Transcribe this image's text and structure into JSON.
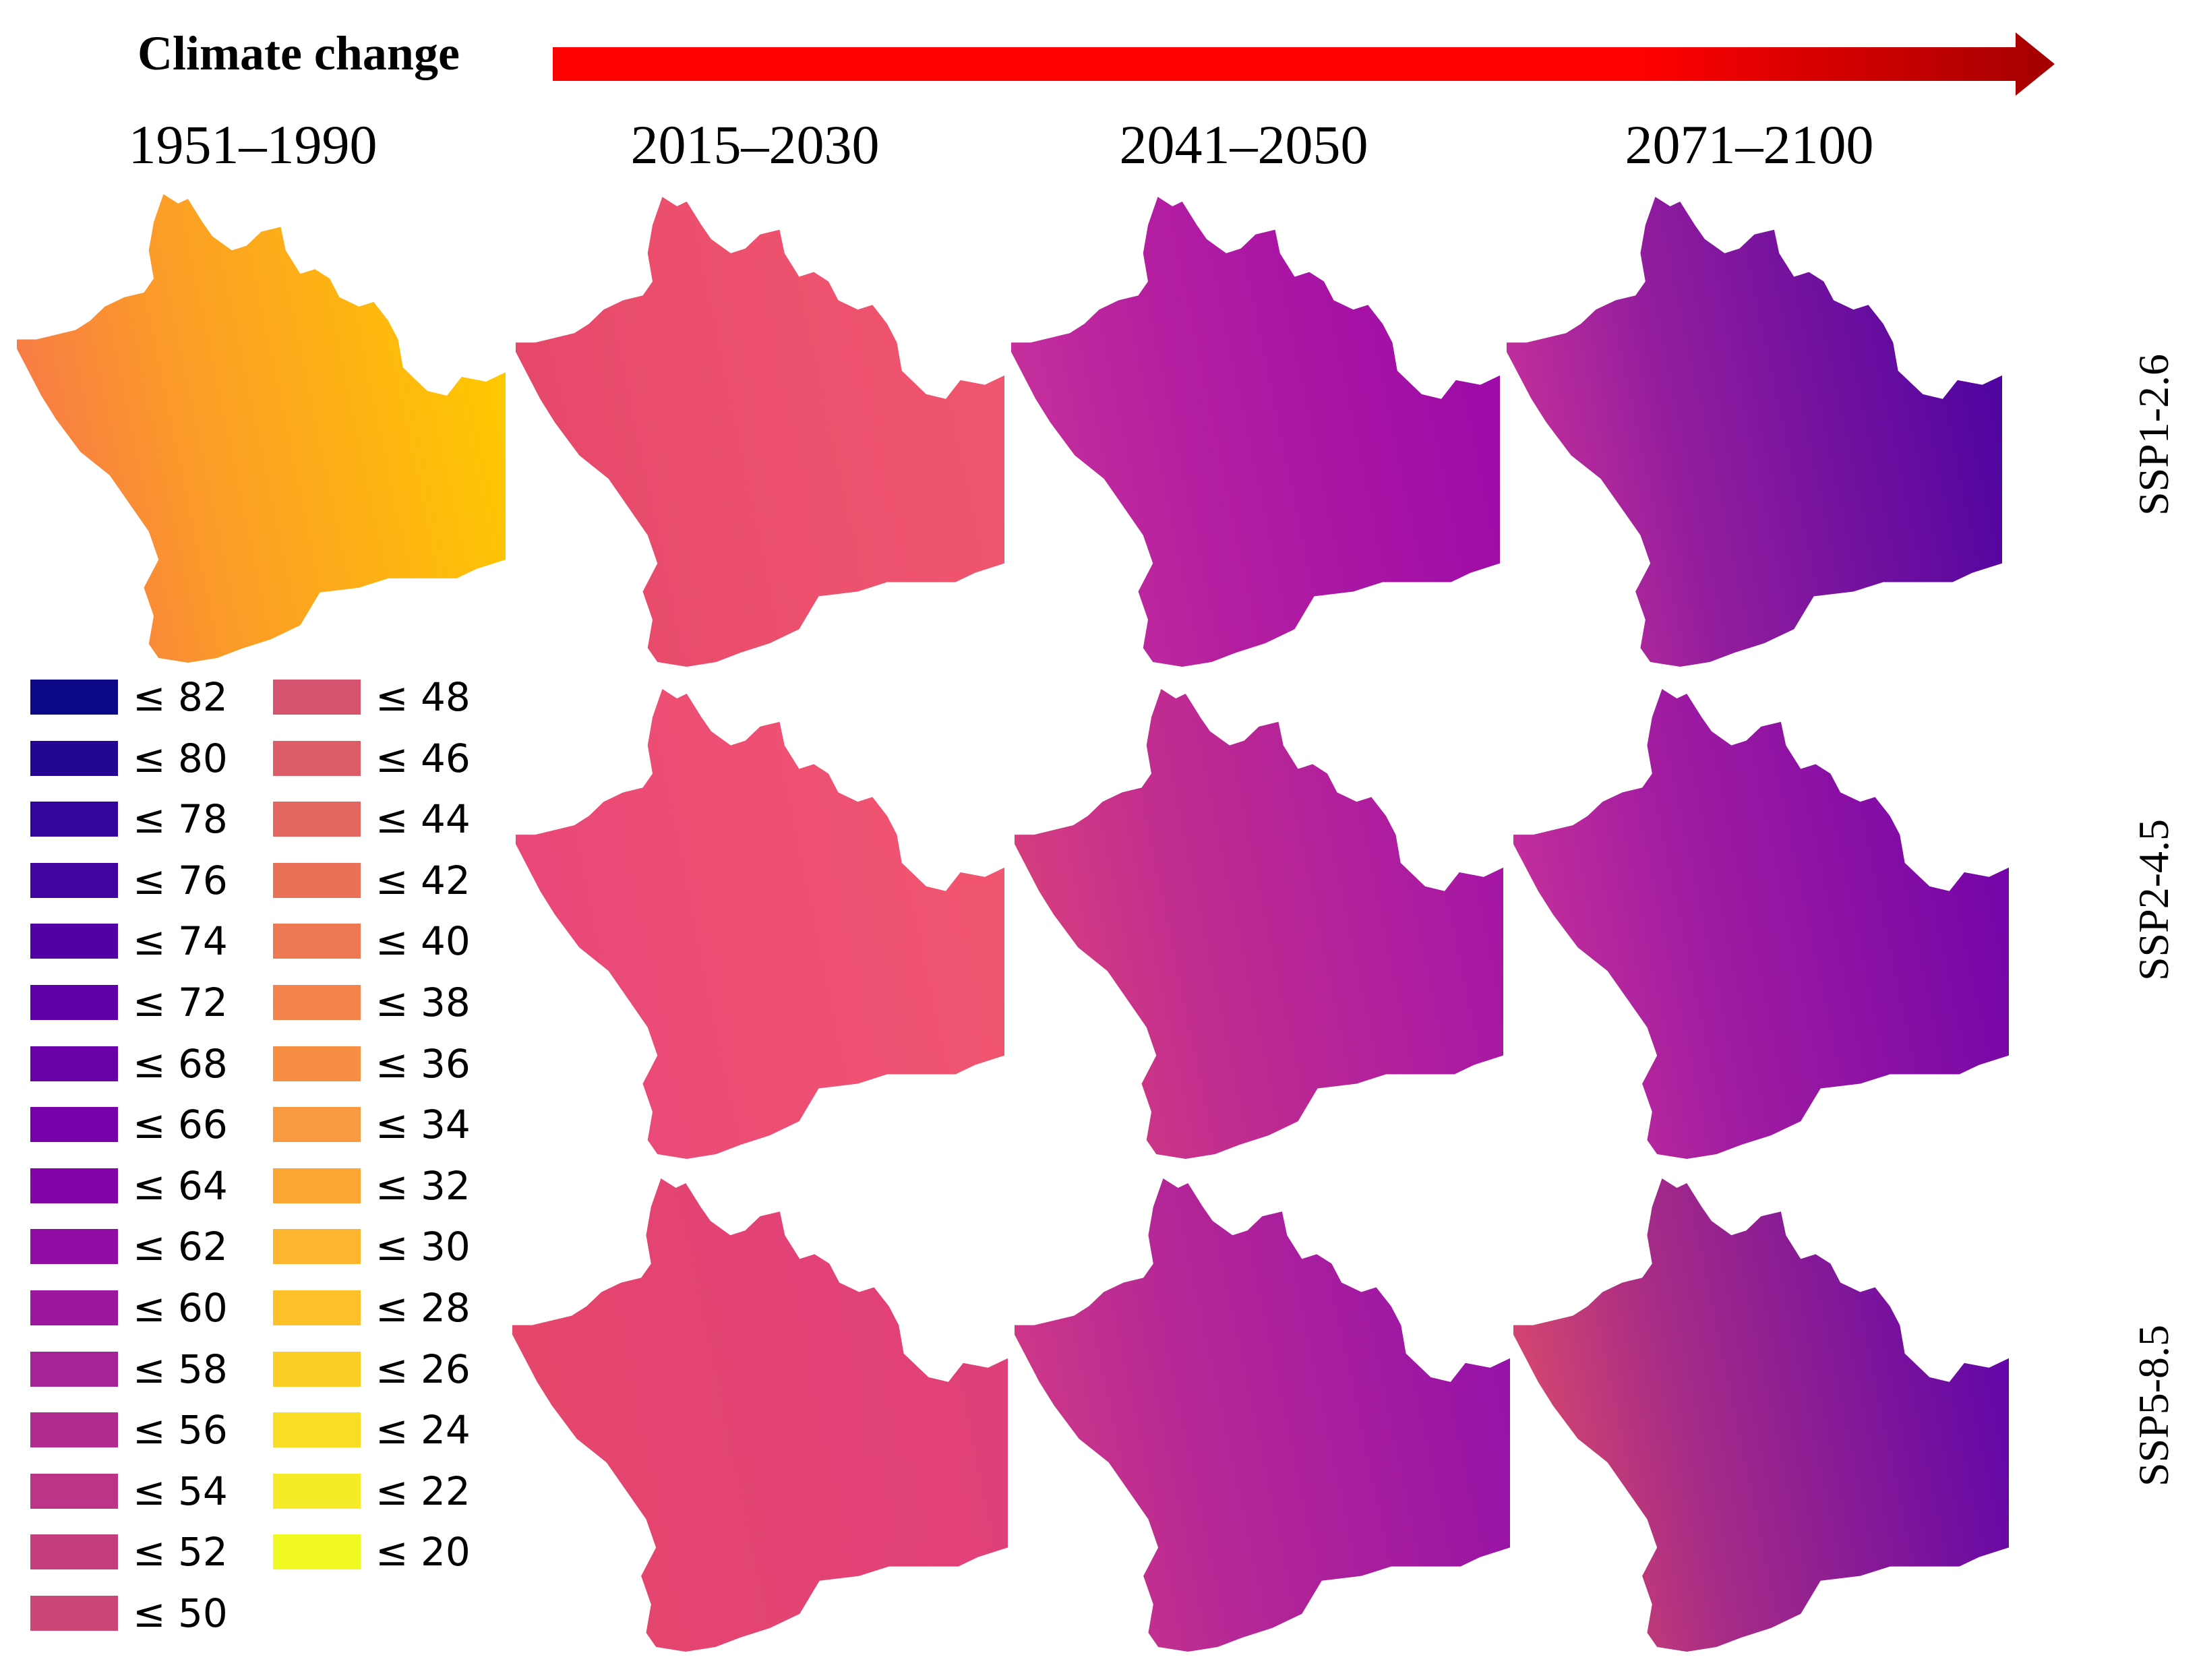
{
  "header": {
    "title": "Climate change",
    "arrow_color_start": "#ff0000",
    "arrow_color_end": "#a30000"
  },
  "periods": [
    "1951–1990",
    "2015–2030",
    "2041–2050",
    "2071–2100"
  ],
  "scenarios": [
    "SSP1-2.6",
    "SSP2-4.5",
    "SSP5-8.5"
  ],
  "maps": [
    {
      "period": "1951–1990",
      "scenario": "SSP1-2.6",
      "class_value": 30,
      "west_edge_color": "#f7774a",
      "east_color": "#ffc800"
    },
    {
      "period": "2015–2030",
      "scenario": "SSP1-2.6",
      "class_value": 48,
      "west_edge_color": "#e5476a",
      "east_color": "#f0566f"
    },
    {
      "period": "2041–2050",
      "scenario": "SSP1-2.6",
      "class_value": 60,
      "west_edge_color": "#c8319a",
      "east_color": "#9c0aa8"
    },
    {
      "period": "2071–2100",
      "scenario": "SSP1-2.6",
      "class_value": 76,
      "west_edge_color": "#c8319a",
      "east_color": "#4f04a0"
    },
    {
      "period": "2015–2030",
      "scenario": "SSP2-4.5",
      "class_value": 52,
      "west_edge_color": "#e8467a",
      "east_color": "#f0566f"
    },
    {
      "period": "2041–2050",
      "scenario": "SSP2-4.5",
      "class_value": 58,
      "west_edge_color": "#d8407c",
      "east_color": "#a416a6"
    },
    {
      "period": "2071–2100",
      "scenario": "SSP2-4.5",
      "class_value": 66,
      "west_edge_color": "#c8319a",
      "east_color": "#7405a8"
    },
    {
      "period": "2015–2030",
      "scenario": "SSP5-8.5",
      "class_value": 52,
      "west_edge_color": "#e5476a",
      "east_color": "#e0407a"
    },
    {
      "period": "2041–2050",
      "scenario": "SSP5-8.5",
      "class_value": 60,
      "west_edge_color": "#d03a86",
      "east_color": "#9612a8"
    },
    {
      "period": "2071–2100",
      "scenario": "SSP5-8.5",
      "class_value": 68,
      "west_edge_color": "#dc4a6c",
      "east_color": "#6206a8"
    }
  ],
  "legend": {
    "column_1": [
      {
        "label": "≤ 82",
        "color": "#0d0887"
      },
      {
        "label": "≤ 80",
        "color": "#240694"
      },
      {
        "label": "≤ 78",
        "color": "#33059a"
      },
      {
        "label": "≤ 76",
        "color": "#42049e"
      },
      {
        "label": "≤ 74",
        "color": "#5002a2"
      },
      {
        "label": "≤ 72",
        "color": "#5d01a6"
      },
      {
        "label": "≤ 68",
        "color": "#6a00a8"
      },
      {
        "label": "≤ 66",
        "color": "#7701a8"
      },
      {
        "label": "≤ 64",
        "color": "#8405a7"
      },
      {
        "label": "≤ 62",
        "color": "#900da4"
      },
      {
        "label": "≤ 60",
        "color": "#9c179e"
      },
      {
        "label": "≤ 58",
        "color": "#a72197"
      },
      {
        "label": "≤ 56",
        "color": "#b12a90"
      },
      {
        "label": "≤ 54",
        "color": "#bb3488"
      },
      {
        "label": "≤ 52",
        "color": "#c43e7f"
      },
      {
        "label": "≤ 50",
        "color": "#cc4778"
      }
    ],
    "column_2": [
      {
        "label": "≤ 48",
        "color": "#d5536f"
      },
      {
        "label": "≤ 46",
        "color": "#dc5c68"
      },
      {
        "label": "≤ 44",
        "color": "#e36660"
      },
      {
        "label": "≤ 42",
        "color": "#e97158"
      },
      {
        "label": "≤ 40",
        "color": "#ed7953"
      },
      {
        "label": "≤ 38",
        "color": "#f2844b"
      },
      {
        "label": "≤ 36",
        "color": "#f68f44"
      },
      {
        "label": "≤ 34",
        "color": "#f89b40"
      },
      {
        "label": "≤ 32",
        "color": "#fca636"
      },
      {
        "label": "≤ 30",
        "color": "#fdb42f"
      },
      {
        "label": "≤ 28",
        "color": "#fec029"
      },
      {
        "label": "≤ 26",
        "color": "#fccd25"
      },
      {
        "label": "≤ 24",
        "color": "#f9dc24"
      },
      {
        "label": "≤ 22",
        "color": "#f5eb27"
      },
      {
        "label": "≤ 20",
        "color": "#f0f921"
      }
    ]
  }
}
